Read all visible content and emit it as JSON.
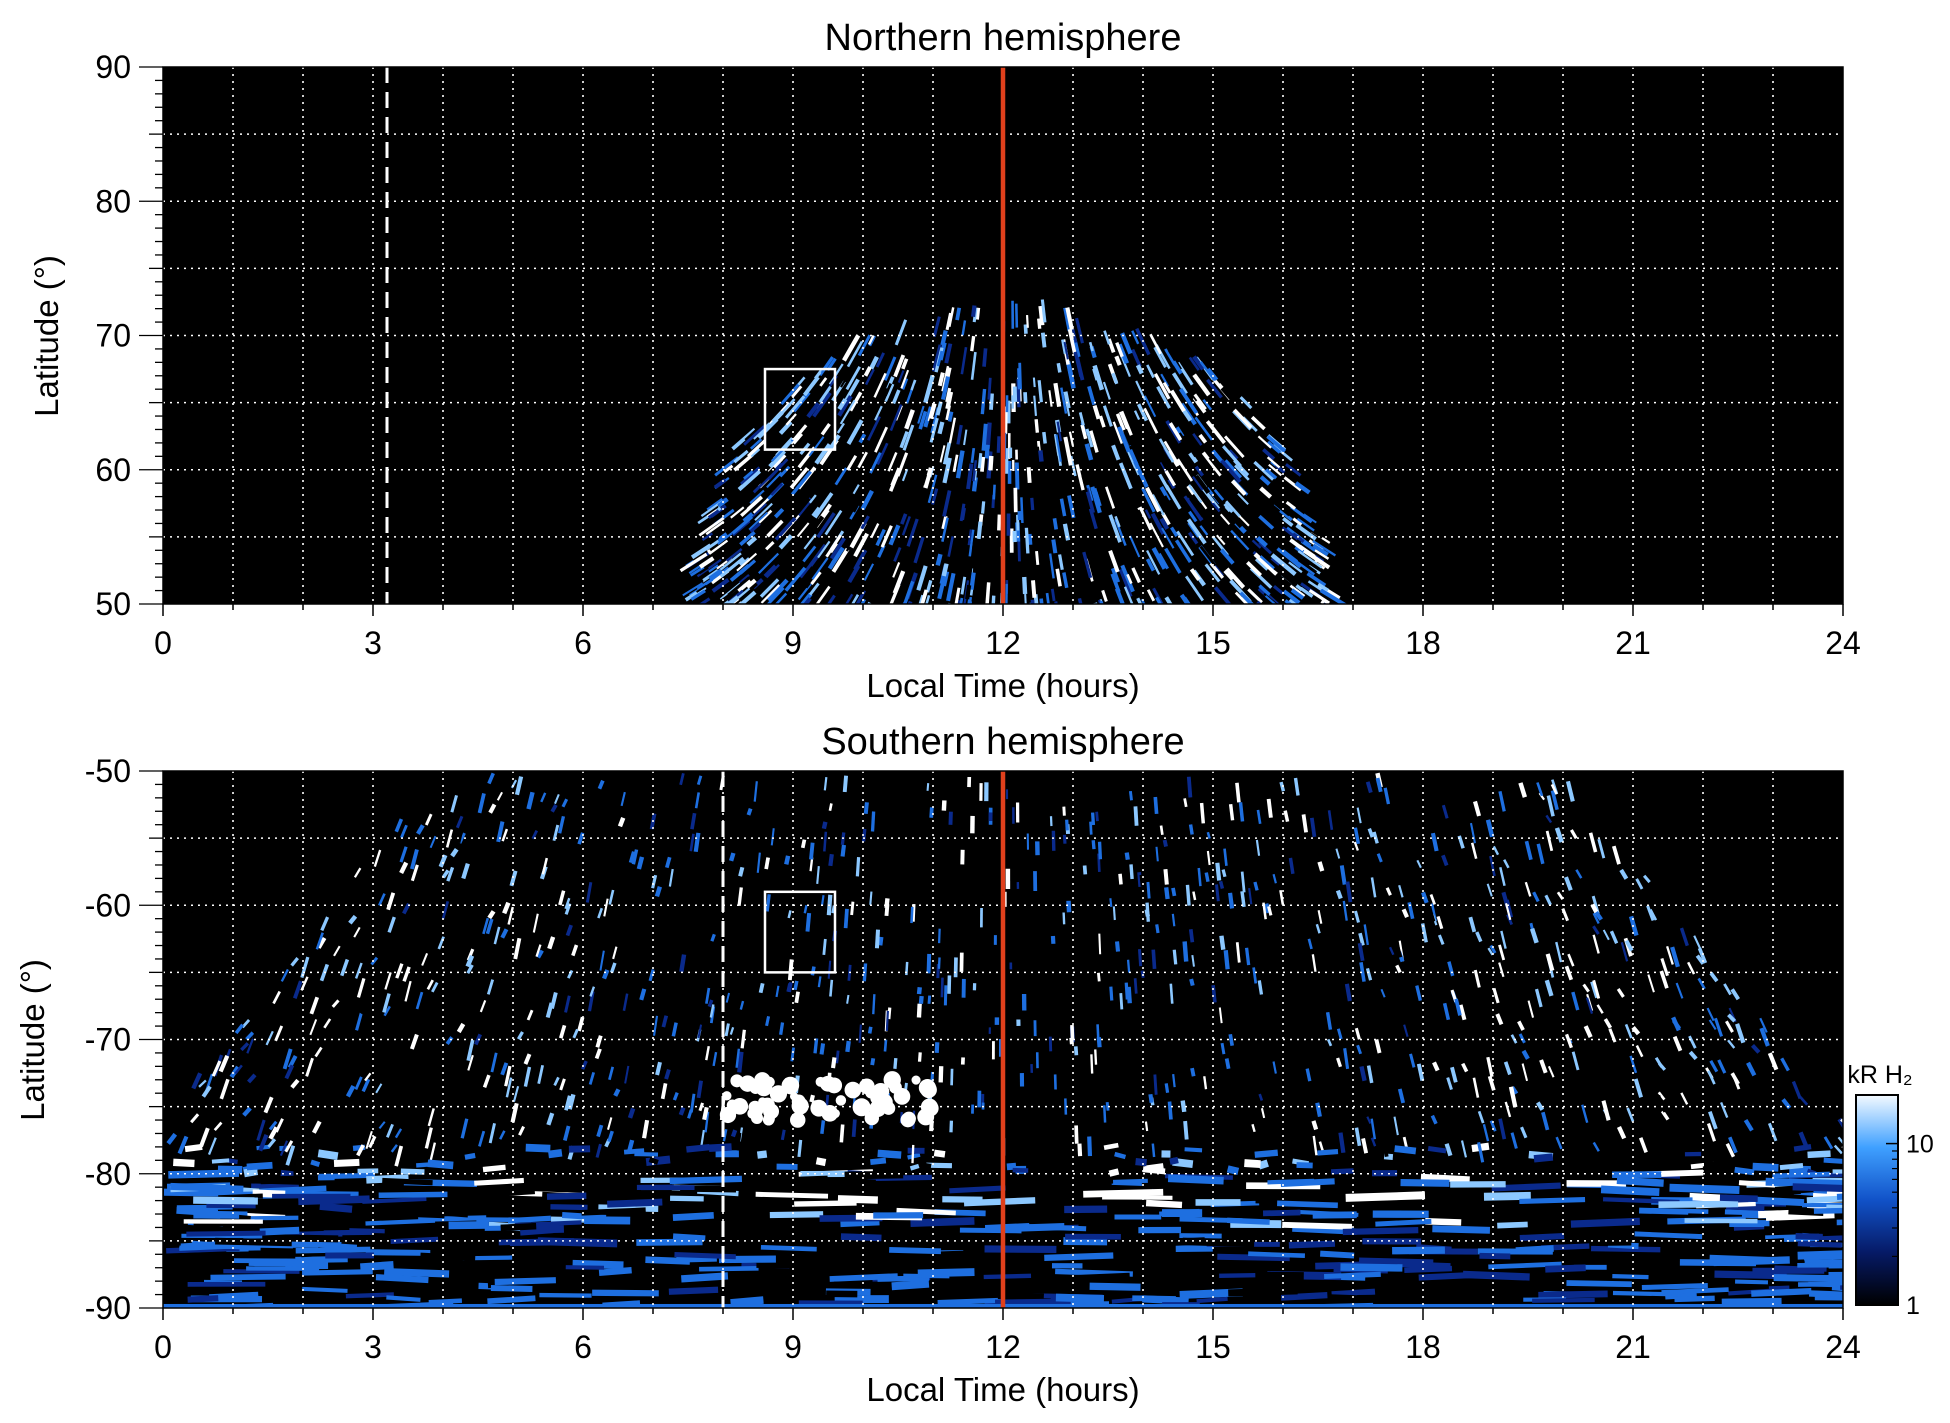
{
  "chart_data": [
    {
      "type": "heatmap",
      "title": "Northern hemisphere",
      "xlabel": "Local Time (hours)",
      "ylabel": "Latitude (°)",
      "xlim": [
        0,
        24
      ],
      "ylim": [
        50,
        90
      ],
      "x_ticks": [
        "0",
        "3",
        "6",
        "9",
        "12",
        "15",
        "18",
        "21",
        "24"
      ],
      "y_ticks": [
        "90",
        "80",
        "70",
        "60",
        "50"
      ],
      "grid": true,
      "colors": {
        "background": "#000000",
        "dark_blue": "#0a2a8c",
        "mid_blue": "#1e6fe0",
        "light_blue": "#8cc8ff",
        "white": "#ffffff",
        "noon_line": "#e0401c"
      },
      "coverage": {
        "lt_range": [
          7.7,
          16.6
        ],
        "max_latitude_near_noon": 73
      },
      "annotations": {
        "noon_line_lt": 12,
        "dashed_line_lt": 3.2,
        "box": {
          "lt": [
            8.6,
            9.6
          ],
          "lat": [
            61.5,
            67.5
          ]
        }
      },
      "emission_bands": [
        {
          "lt": [
            10.2,
            11.0
          ],
          "lat": [
            61.5,
            67
          ],
          "level": "bright"
        },
        {
          "lt": [
            13.8,
            14.6
          ],
          "lat": [
            61.5,
            66
          ],
          "level": "bright"
        },
        {
          "lt": [
            11.5,
            12.6
          ],
          "lat": [
            62,
            68
          ],
          "level": "bright"
        }
      ]
    },
    {
      "type": "heatmap",
      "title": "Southern hemisphere",
      "xlabel": "Local Time (hours)",
      "ylabel": "Latitude (°)",
      "xlim": [
        0,
        24
      ],
      "ylim": [
        -90,
        -50
      ],
      "x_ticks": [
        "0",
        "3",
        "6",
        "9",
        "12",
        "15",
        "18",
        "21",
        "24"
      ],
      "y_ticks": [
        "-50",
        "-60",
        "-70",
        "-80",
        "-90"
      ],
      "grid": true,
      "annotations": {
        "noon_line_lt": 12,
        "dashed_line_lt": 8,
        "box": {
          "lt": [
            8.6,
            9.6
          ],
          "lat": [
            -65,
            -59
          ]
        }
      },
      "emission_bands": [
        {
          "lt": [
            1.5,
            6.0
          ],
          "lat": [
            -78,
            -55
          ],
          "level": "bright_oval"
        },
        {
          "lt": [
            18.3,
            22.5
          ],
          "lat": [
            -78,
            -55
          ],
          "level": "bright_oval"
        },
        {
          "lt": [
            8.0,
            11.0
          ],
          "lat": [
            -76,
            -73
          ],
          "level": "bright_patch"
        }
      ],
      "colorbar": {
        "label": "kR H₂",
        "ticks": [
          "1",
          "10"
        ],
        "range": [
          1,
          20
        ],
        "scale": "log"
      }
    }
  ]
}
